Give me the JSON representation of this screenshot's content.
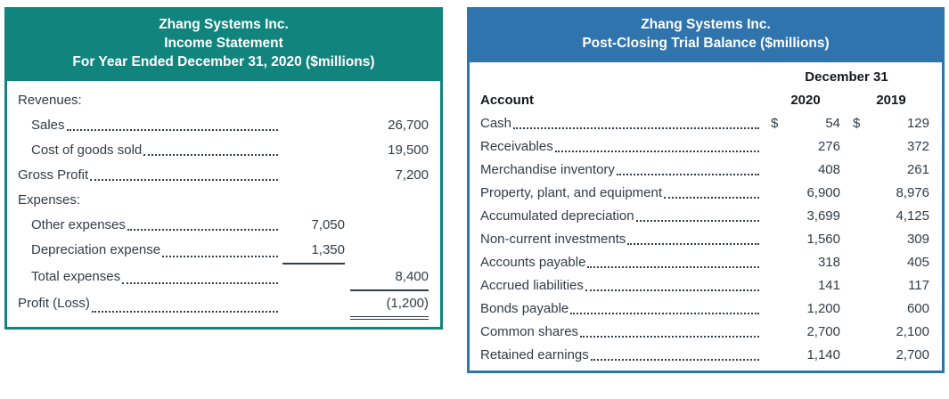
{
  "income_statement": {
    "accent_color": "#12847E",
    "title_lines": [
      "Zhang Systems Inc.",
      "Income Statement",
      "For Year Ended December 31, 2020 ($millions)"
    ],
    "rows": [
      {
        "label": "Revenues:",
        "indent": 0,
        "dots": false,
        "mid": "",
        "right": ""
      },
      {
        "label": "Sales",
        "indent": 1,
        "dots": true,
        "mid": "",
        "right": "26,700"
      },
      {
        "label": "Cost of goods sold",
        "indent": 1,
        "dots": true,
        "mid": "",
        "right": "19,500"
      },
      {
        "label": "Gross Profit",
        "indent": 0,
        "dots": true,
        "mid": "",
        "right": "7,200"
      },
      {
        "label": "Expenses:",
        "indent": 0,
        "dots": false,
        "mid": "",
        "right": ""
      },
      {
        "label": "Other expenses",
        "indent": 1,
        "dots": true,
        "mid": "7,050",
        "right": ""
      },
      {
        "label": "Depreciation expense",
        "indent": 1,
        "dots": true,
        "mid": "1,350",
        "right": "",
        "mid_underline": "single"
      },
      {
        "label": "Total expenses",
        "indent": 1,
        "dots": true,
        "mid": "",
        "right": "8,400",
        "right_underline": "single"
      },
      {
        "label": "Profit (Loss)",
        "indent": 0,
        "dots": true,
        "mid": "",
        "right": "(1,200)",
        "right_underline": "double"
      }
    ]
  },
  "trial_balance": {
    "accent_color": "#3074AE",
    "title_lines": [
      "Zhang Systems Inc.",
      "Post-Closing Trial Balance ($millions)"
    ],
    "date_header": "December 31",
    "columns": {
      "account": "Account",
      "y2020": "2020",
      "y2019": "2019"
    },
    "currency_symbol": "$",
    "rows": [
      {
        "label": "Cash",
        "dollar": true,
        "v2020": "54",
        "v2019": "129"
      },
      {
        "label": "Receivables",
        "dollar": false,
        "v2020": "276",
        "v2019": "372"
      },
      {
        "label": "Merchandise inventory",
        "dollar": false,
        "v2020": "408",
        "v2019": "261"
      },
      {
        "label": "Property, plant, and equipment",
        "dollar": false,
        "v2020": "6,900",
        "v2019": "8,976"
      },
      {
        "label": "Accumulated depreciation",
        "dollar": false,
        "v2020": "3,699",
        "v2019": "4,125"
      },
      {
        "label": "Non-current investments",
        "dollar": false,
        "v2020": "1,560",
        "v2019": "309"
      },
      {
        "label": "Accounts payable",
        "dollar": false,
        "v2020": "318",
        "v2019": "405"
      },
      {
        "label": "Accrued liabilities",
        "dollar": false,
        "v2020": "141",
        "v2019": "117"
      },
      {
        "label": "Bonds payable",
        "dollar": false,
        "v2020": "1,200",
        "v2019": "600"
      },
      {
        "label": "Common shares",
        "dollar": false,
        "v2020": "2,700",
        "v2019": "2,100"
      },
      {
        "label": "Retained earnings",
        "dollar": false,
        "v2020": "1,140",
        "v2019": "2,700"
      }
    ]
  }
}
